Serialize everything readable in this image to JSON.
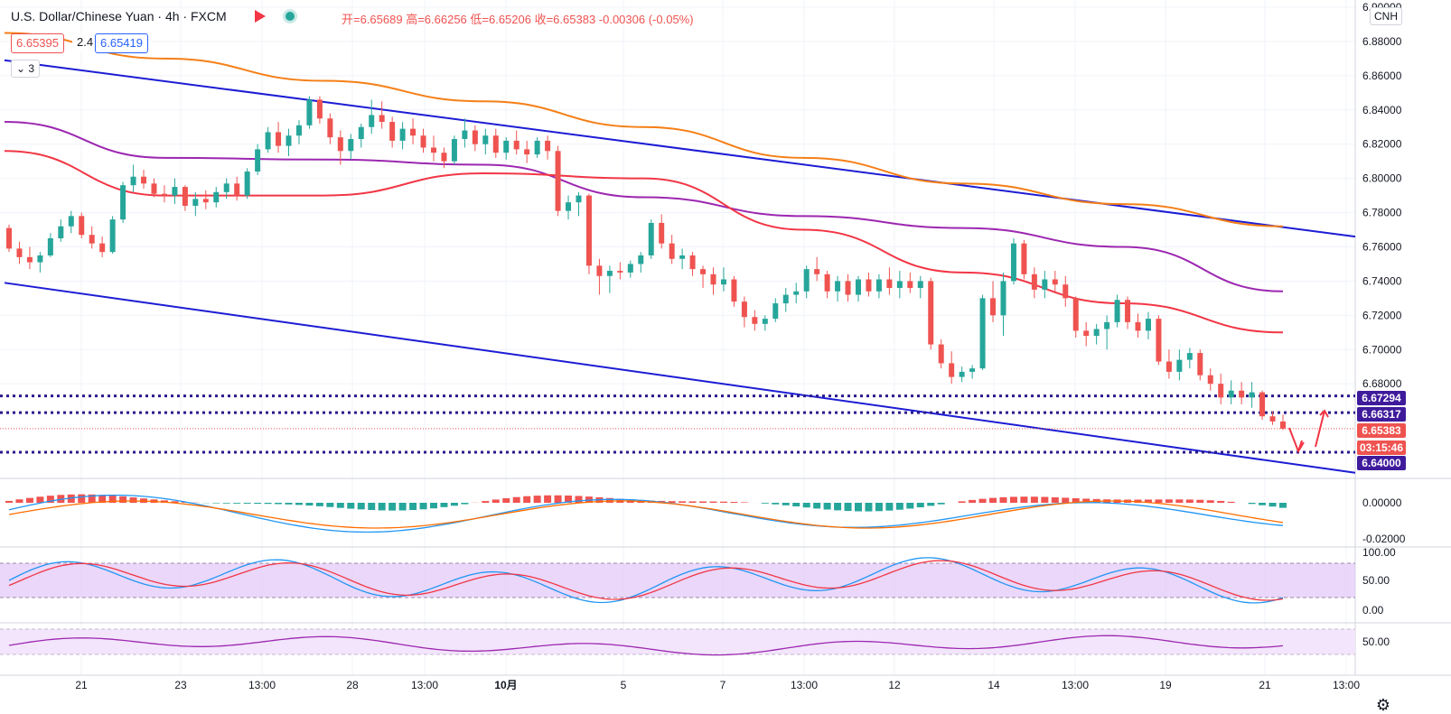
{
  "header": {
    "title": "U.S. Dollar/Chinese Yuan · 4h · FXCM",
    "ohlc": "开=6.65689 高=6.66256 低=6.65206 收=6.65383 -0.00306 (-0.05%)",
    "bid": "6.65395",
    "spread": "2.4",
    "ask": "6.65419",
    "indicators_collapse": "3",
    "currency": "CNH"
  },
  "chart_data": {
    "type": "candlestick",
    "symbol": "USD/CNH",
    "timeframe": "4h",
    "price_axis": {
      "ylim": [
        6.63,
        6.9
      ],
      "ticks": [
        "6.68000",
        "6.70000",
        "6.72000",
        "6.74000",
        "6.76000",
        "6.78000",
        "6.80000",
        "6.82000",
        "6.84000",
        "6.86000",
        "6.88000",
        "6.90000"
      ]
    },
    "x_axis": {
      "ticks": [
        "21",
        "23",
        "13:00",
        "28",
        "13:00",
        "10月",
        "5",
        "7",
        "13:00",
        "12",
        "14",
        "13:00",
        "19",
        "21",
        "13:00"
      ]
    },
    "price_labels": [
      {
        "value": "6.67294",
        "color": "#3f1b9c"
      },
      {
        "value": "6.66317",
        "color": "#3f1b9c"
      },
      {
        "value": "6.65383",
        "color": "#ef5350"
      },
      {
        "value": "03:15:46",
        "color": "#ef5350"
      },
      {
        "value": "6.64000",
        "color": "#3f1b9c"
      }
    ],
    "horizontal_levels": [
      6.67294,
      6.66317,
      6.6538,
      6.64
    ],
    "channel_upper": {
      "start": 6.869,
      "end": 6.766
    },
    "channel_lower": {
      "start": 6.739,
      "end": 6.628
    },
    "ma_orange": [
      6.885,
      6.87,
      6.857,
      6.845,
      6.83,
      6.812,
      6.797,
      6.785,
      6.772
    ],
    "ma_purple": [
      6.833,
      6.812,
      6.811,
      6.808,
      6.789,
      6.778,
      6.771,
      6.76,
      6.734
    ],
    "ma_red": [
      6.816,
      6.79,
      6.79,
      6.803,
      6.8,
      6.77,
      6.745,
      6.727,
      6.71
    ],
    "ohlc_candles": [
      [
        6.771,
        6.773,
        6.757,
        6.759
      ],
      [
        6.759,
        6.763,
        6.75,
        6.754
      ],
      [
        6.754,
        6.76,
        6.747,
        6.751
      ],
      [
        6.751,
        6.757,
        6.745,
        6.755
      ],
      [
        6.755,
        6.768,
        6.754,
        6.765
      ],
      [
        6.765,
        6.776,
        6.763,
        6.772
      ],
      [
        6.772,
        6.781,
        6.768,
        6.778
      ],
      [
        6.778,
        6.78,
        6.765,
        6.767
      ],
      [
        6.767,
        6.772,
        6.759,
        6.762
      ],
      [
        6.762,
        6.766,
        6.754,
        6.757
      ],
      [
        6.757,
        6.778,
        6.756,
        6.776
      ],
      [
        6.776,
        6.798,
        6.774,
        6.796
      ],
      [
        6.796,
        6.808,
        6.792,
        6.801
      ],
      [
        6.801,
        6.805,
        6.794,
        6.797
      ],
      [
        6.797,
        6.8,
        6.789,
        6.791
      ],
      [
        6.791,
        6.796,
        6.786,
        6.79
      ],
      [
        6.79,
        6.8,
        6.785,
        6.795
      ],
      [
        6.795,
        6.796,
        6.781,
        6.784
      ],
      [
        6.784,
        6.792,
        6.778,
        6.788
      ],
      [
        6.788,
        6.793,
        6.782,
        6.786
      ],
      [
        6.786,
        6.795,
        6.783,
        6.792
      ],
      [
        6.792,
        6.8,
        6.788,
        6.797
      ],
      [
        6.797,
        6.801,
        6.787,
        6.79
      ],
      [
        6.79,
        6.806,
        6.788,
        6.804
      ],
      [
        6.804,
        6.82,
        6.802,
        6.817
      ],
      [
        6.817,
        6.83,
        6.815,
        6.827
      ],
      [
        6.827,
        6.833,
        6.815,
        6.819
      ],
      [
        6.819,
        6.829,
        6.813,
        6.825
      ],
      [
        6.825,
        6.834,
        6.82,
        6.831
      ],
      [
        6.831,
        6.848,
        6.829,
        6.846
      ],
      [
        6.846,
        6.848,
        6.832,
        6.835
      ],
      [
        6.835,
        6.838,
        6.82,
        6.824
      ],
      [
        6.824,
        6.828,
        6.808,
        6.816
      ],
      [
        6.816,
        6.826,
        6.811,
        6.823
      ],
      [
        6.823,
        6.832,
        6.818,
        6.83
      ],
      [
        6.83,
        6.846,
        6.826,
        6.837
      ],
      [
        6.837,
        6.845,
        6.829,
        6.833
      ],
      [
        6.833,
        6.836,
        6.818,
        6.822
      ],
      [
        6.822,
        6.833,
        6.817,
        6.829
      ],
      [
        6.829,
        6.835,
        6.82,
        6.825
      ],
      [
        6.825,
        6.829,
        6.815,
        6.818
      ],
      [
        6.818,
        6.825,
        6.81,
        6.815
      ],
      [
        6.815,
        6.818,
        6.806,
        6.81
      ],
      [
        6.81,
        6.825,
        6.808,
        6.823
      ],
      [
        6.823,
        6.835,
        6.818,
        6.828
      ],
      [
        6.828,
        6.831,
        6.816,
        6.82
      ],
      [
        6.82,
        6.829,
        6.814,
        6.825
      ],
      [
        6.825,
        6.829,
        6.812,
        6.815
      ],
      [
        6.815,
        6.824,
        6.811,
        6.822
      ],
      [
        6.822,
        6.828,
        6.814,
        6.817
      ],
      [
        6.817,
        6.822,
        6.809,
        6.814
      ],
      [
        6.814,
        6.824,
        6.812,
        6.822
      ],
      [
        6.822,
        6.825,
        6.811,
        6.816
      ],
      [
        6.816,
        6.819,
        6.778,
        6.781
      ],
      [
        6.781,
        6.79,
        6.776,
        6.786
      ],
      [
        6.786,
        6.792,
        6.778,
        6.79
      ],
      [
        6.79,
        6.791,
        6.744,
        6.749
      ],
      [
        6.749,
        6.753,
        6.732,
        6.743
      ],
      [
        6.743,
        6.749,
        6.733,
        6.746
      ],
      [
        6.746,
        6.751,
        6.741,
        6.745
      ],
      [
        6.745,
        6.752,
        6.742,
        6.75
      ],
      [
        6.75,
        6.757,
        6.745,
        6.755
      ],
      [
        6.755,
        6.776,
        6.753,
        6.774
      ],
      [
        6.774,
        6.779,
        6.759,
        6.762
      ],
      [
        6.762,
        6.767,
        6.75,
        6.753
      ],
      [
        6.753,
        6.759,
        6.747,
        6.755
      ],
      [
        6.755,
        6.757,
        6.743,
        6.747
      ],
      [
        6.747,
        6.749,
        6.736,
        6.744
      ],
      [
        6.744,
        6.748,
        6.732,
        6.738
      ],
      [
        6.738,
        6.748,
        6.734,
        6.741
      ],
      [
        6.741,
        6.743,
        6.725,
        6.728
      ],
      [
        6.728,
        6.731,
        6.713,
        6.719
      ],
      [
        6.719,
        6.723,
        6.711,
        6.715
      ],
      [
        6.715,
        6.72,
        6.711,
        6.718
      ],
      [
        6.718,
        6.73,
        6.716,
        6.727
      ],
      [
        6.727,
        6.736,
        6.722,
        6.732
      ],
      [
        6.732,
        6.739,
        6.727,
        6.734
      ],
      [
        6.734,
        6.749,
        6.73,
        6.747
      ],
      [
        6.747,
        6.754,
        6.74,
        6.744
      ],
      [
        6.744,
        6.746,
        6.73,
        6.734
      ],
      [
        6.734,
        6.743,
        6.728,
        6.74
      ],
      [
        6.74,
        6.744,
        6.728,
        6.732
      ],
      [
        6.732,
        6.743,
        6.728,
        6.741
      ],
      [
        6.741,
        6.745,
        6.731,
        6.734
      ],
      [
        6.734,
        6.744,
        6.73,
        6.741
      ],
      [
        6.741,
        6.748,
        6.732,
        6.736
      ],
      [
        6.736,
        6.746,
        6.73,
        6.74
      ],
      [
        6.74,
        6.745,
        6.733,
        6.736
      ],
      [
        6.736,
        6.743,
        6.73,
        6.74
      ],
      [
        6.74,
        6.742,
        6.7,
        6.703
      ],
      [
        6.703,
        6.706,
        6.689,
        6.692
      ],
      [
        6.692,
        6.699,
        6.68,
        6.684
      ],
      [
        6.684,
        6.69,
        6.681,
        6.687
      ],
      [
        6.687,
        6.691,
        6.683,
        6.689
      ],
      [
        6.689,
        6.732,
        6.688,
        6.73
      ],
      [
        6.73,
        6.74,
        6.716,
        6.72
      ],
      [
        6.72,
        6.745,
        6.708,
        6.74
      ],
      [
        6.74,
        6.765,
        6.738,
        6.762
      ],
      [
        6.762,
        6.764,
        6.741,
        6.744
      ],
      [
        6.744,
        6.748,
        6.73,
        6.735
      ],
      [
        6.735,
        6.746,
        6.73,
        6.741
      ],
      [
        6.741,
        6.746,
        6.734,
        6.738
      ],
      [
        6.738,
        6.743,
        6.725,
        6.73
      ],
      [
        6.73,
        6.731,
        6.707,
        6.711
      ],
      [
        6.711,
        6.716,
        6.702,
        6.708
      ],
      [
        6.708,
        6.715,
        6.703,
        6.712
      ],
      [
        6.712,
        6.72,
        6.7,
        6.716
      ],
      [
        6.716,
        6.732,
        6.713,
        6.729
      ],
      [
        6.729,
        6.731,
        6.712,
        6.716
      ],
      [
        6.716,
        6.721,
        6.707,
        6.711
      ],
      [
        6.711,
        6.722,
        6.706,
        6.718
      ],
      [
        6.718,
        6.72,
        6.691,
        6.693
      ],
      [
        6.693,
        6.7,
        6.683,
        6.687
      ],
      [
        6.687,
        6.7,
        6.682,
        6.694
      ],
      [
        6.694,
        6.701,
        6.689,
        6.698
      ],
      [
        6.698,
        6.7,
        6.682,
        6.685
      ],
      [
        6.685,
        6.689,
        6.676,
        6.68
      ],
      [
        6.68,
        6.686,
        6.668,
        6.672
      ],
      [
        6.672,
        6.682,
        6.668,
        6.676
      ],
      [
        6.676,
        6.681,
        6.668,
        6.672
      ],
      [
        6.672,
        6.681,
        6.666,
        6.675
      ],
      [
        6.675,
        6.676,
        6.659,
        6.661
      ],
      [
        6.661,
        6.664,
        6.656,
        6.658
      ],
      [
        6.658,
        6.662,
        6.653,
        6.6538
      ]
    ],
    "macd": {
      "axis": [
        "0.00000",
        "-0.02000"
      ]
    },
    "stoch": {
      "axis": [
        "100.00",
        "50.00",
        "0.00"
      ]
    },
    "rsi": {
      "axis": [
        "50.00"
      ]
    }
  }
}
